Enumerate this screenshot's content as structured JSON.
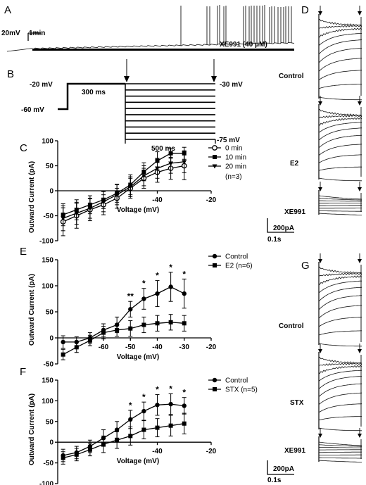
{
  "figure": {
    "panel_labels": {
      "A": "A",
      "B": "B",
      "C": "C",
      "D": "D",
      "E": "E",
      "F": "F",
      "G": "G"
    },
    "panel_A": {
      "scale_voltage": "20mV",
      "scale_time": "1min",
      "drug_label": "XE991 (40 μM)"
    },
    "panel_B": {
      "levels": {
        "start": "-60 mV",
        "step": "-20 mV",
        "hold": "-30 mV",
        "end": "-75 mV"
      },
      "durations": {
        "first": "300 ms",
        "second": "500 ms"
      }
    },
    "panel_D": {
      "labels": [
        "Control",
        "E2",
        "XE991"
      ],
      "scale_current": "200pA",
      "scale_time": "0.1s"
    },
    "panel_G": {
      "labels": [
        "Control",
        "STX",
        "XE991"
      ],
      "scale_current": "200pA",
      "scale_time": "0.1s"
    }
  },
  "chart_data": [
    {
      "panel": "C",
      "type": "line",
      "xlabel": "Voltage (mV)",
      "ylabel": "Outward Current (pA)",
      "xlim": [
        -77,
        -20
      ],
      "ylim": [
        -100,
        100
      ],
      "x_ticks": [
        "-40",
        "-20"
      ],
      "y_ticks": [
        "100",
        "50",
        "0",
        "-50",
        "-100"
      ],
      "note": "(n=3)",
      "legend_position": "top-right",
      "series": [
        {
          "name": "0 min",
          "marker": "open-circle",
          "x": [
            -75,
            -70,
            -65,
            -60,
            -55,
            -50,
            -45,
            -40,
            -35,
            -30
          ],
          "y": [
            -62,
            -50,
            -38,
            -28,
            -15,
            5,
            25,
            37,
            45,
            50
          ],
          "err": [
            28,
            25,
            22,
            20,
            20,
            20,
            20,
            20,
            22,
            28
          ]
        },
        {
          "name": "10 min",
          "marker": "square",
          "x": [
            -75,
            -70,
            -65,
            -60,
            -55,
            -50,
            -45,
            -40,
            -35,
            -30
          ],
          "y": [
            -48,
            -38,
            -28,
            -18,
            -5,
            12,
            38,
            60,
            75,
            75
          ],
          "err": [
            22,
            20,
            18,
            18,
            18,
            20,
            18,
            18,
            10,
            12
          ]
        },
        {
          "name": "20 min",
          "marker": "triangle",
          "x": [
            -75,
            -70,
            -65,
            -60,
            -55,
            -50,
            -45,
            -40,
            -35,
            -30
          ],
          "y": [
            -55,
            -45,
            -35,
            -22,
            -8,
            8,
            30,
            45,
            55,
            58
          ],
          "err": [
            25,
            22,
            20,
            20,
            20,
            20,
            20,
            20,
            20,
            22
          ]
        }
      ]
    },
    {
      "panel": "E",
      "type": "line",
      "xlabel": "Voltage (mV)",
      "ylabel": "Outward Current (pA)",
      "xlim": [
        -77,
        -20
      ],
      "ylim": [
        -50,
        150
      ],
      "x_ticks": [
        "-60",
        "-50",
        "-40",
        "-30",
        "-20"
      ],
      "y_ticks": [
        "150",
        "100",
        "50",
        "0",
        "-50"
      ],
      "legend_position": "top-right",
      "series": [
        {
          "name": "Control",
          "marker": "filled-circle",
          "x": [
            -75,
            -70,
            -65,
            -60,
            -55,
            -50,
            -45,
            -40,
            -35,
            -30
          ],
          "y": [
            -8,
            -8,
            0,
            15,
            25,
            55,
            75,
            85,
            98,
            85
          ],
          "err": [
            12,
            10,
            10,
            12,
            15,
            15,
            20,
            25,
            28,
            28
          ]
        },
        {
          "name": "E2 (n=6)",
          "marker": "square",
          "x": [
            -75,
            -70,
            -65,
            -60,
            -55,
            -50,
            -45,
            -40,
            -35,
            -30
          ],
          "y": [
            -32,
            -18,
            -5,
            10,
            15,
            18,
            25,
            28,
            30,
            28
          ],
          "err": [
            10,
            10,
            10,
            12,
            12,
            15,
            15,
            15,
            15,
            15
          ]
        }
      ],
      "significance": [
        {
          "x": -50,
          "label": "**"
        },
        {
          "x": -45,
          "label": "*"
        },
        {
          "x": -40,
          "label": "*"
        },
        {
          "x": -35,
          "label": "*"
        },
        {
          "x": -30,
          "label": "*"
        }
      ]
    },
    {
      "panel": "F",
      "type": "line",
      "xlabel": "Voltage (mV)",
      "ylabel": "Outward Current (pA)",
      "xlim": [
        -77,
        -20
      ],
      "ylim": [
        -100,
        150
      ],
      "x_ticks": [
        "-40",
        "-20"
      ],
      "y_ticks": [
        "150",
        "100",
        "50",
        "0",
        "-50",
        "-100"
      ],
      "legend_position": "top-right",
      "series": [
        {
          "name": "Control",
          "marker": "filled-circle",
          "x": [
            -75,
            -70,
            -65,
            -60,
            -55,
            -50,
            -45,
            -40,
            -35,
            -30
          ],
          "y": [
            -32,
            -25,
            -10,
            10,
            30,
            55,
            75,
            90,
            92,
            88
          ],
          "err": [
            15,
            15,
            15,
            20,
            20,
            22,
            22,
            25,
            25,
            20
          ]
        },
        {
          "name": "STX (n=5)",
          "marker": "square",
          "x": [
            -75,
            -70,
            -65,
            -60,
            -55,
            -50,
            -45,
            -40,
            -35,
            -30
          ],
          "y": [
            -38,
            -30,
            -18,
            -5,
            5,
            15,
            30,
            35,
            40,
            45
          ],
          "err": [
            15,
            15,
            15,
            20,
            20,
            22,
            22,
            22,
            25,
            25
          ]
        }
      ],
      "significance": [
        {
          "x": -50,
          "label": "*"
        },
        {
          "x": -45,
          "label": "*"
        },
        {
          "x": -40,
          "label": "*"
        },
        {
          "x": -35,
          "label": "*"
        },
        {
          "x": -30,
          "label": "*"
        }
      ]
    }
  ]
}
